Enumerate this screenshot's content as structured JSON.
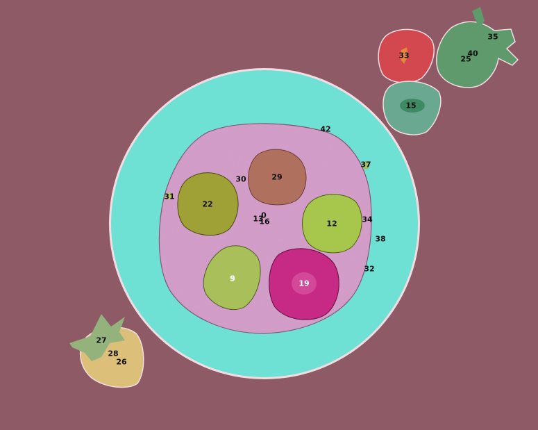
{
  "scene": {
    "colors": {
      "background": "#8d5a66",
      "bowl": "#6fe0d4",
      "bowl_rim": "#f0e0e6",
      "oatmeal": "#d49cc9",
      "kiwi_slice_olive": "#9fa035",
      "kiwi_slice_green": "#a9bf5a",
      "kiwi_slice_lime": "#a7c64c",
      "fig_slice": "#b0705e",
      "dragonfruit_slice": "#c72a84",
      "strawberry_half": "#d2484e",
      "kiwi_half": "#6ba892",
      "strawberry_green": "#5e9a6b",
      "strawberry_yellow": "#dcc07a"
    },
    "labels": [
      {
        "id": "l0",
        "text": "0"
      },
      {
        "id": "l3",
        "text": "3"
      },
      {
        "id": "l9",
        "text": "9"
      },
      {
        "id": "l12",
        "text": "12"
      },
      {
        "id": "l13",
        "text": "13"
      },
      {
        "id": "l15",
        "text": "15"
      },
      {
        "id": "l16",
        "text": "16"
      },
      {
        "id": "l19",
        "text": "19"
      },
      {
        "id": "l22",
        "text": "22"
      },
      {
        "id": "l25",
        "text": "25"
      },
      {
        "id": "l26",
        "text": "26"
      },
      {
        "id": "l27",
        "text": "27"
      },
      {
        "id": "l28",
        "text": "28"
      },
      {
        "id": "l29",
        "text": "29"
      },
      {
        "id": "l30",
        "text": "30"
      },
      {
        "id": "l31",
        "text": "31"
      },
      {
        "id": "l32",
        "text": "32"
      },
      {
        "id": "l33",
        "text": "33"
      },
      {
        "id": "l34",
        "text": "34"
      },
      {
        "id": "l35",
        "text": "35"
      },
      {
        "id": "l37",
        "text": "37"
      },
      {
        "id": "l38",
        "text": "38"
      },
      {
        "id": "l40",
        "text": "40"
      },
      {
        "id": "l42",
        "text": "42"
      }
    ]
  }
}
